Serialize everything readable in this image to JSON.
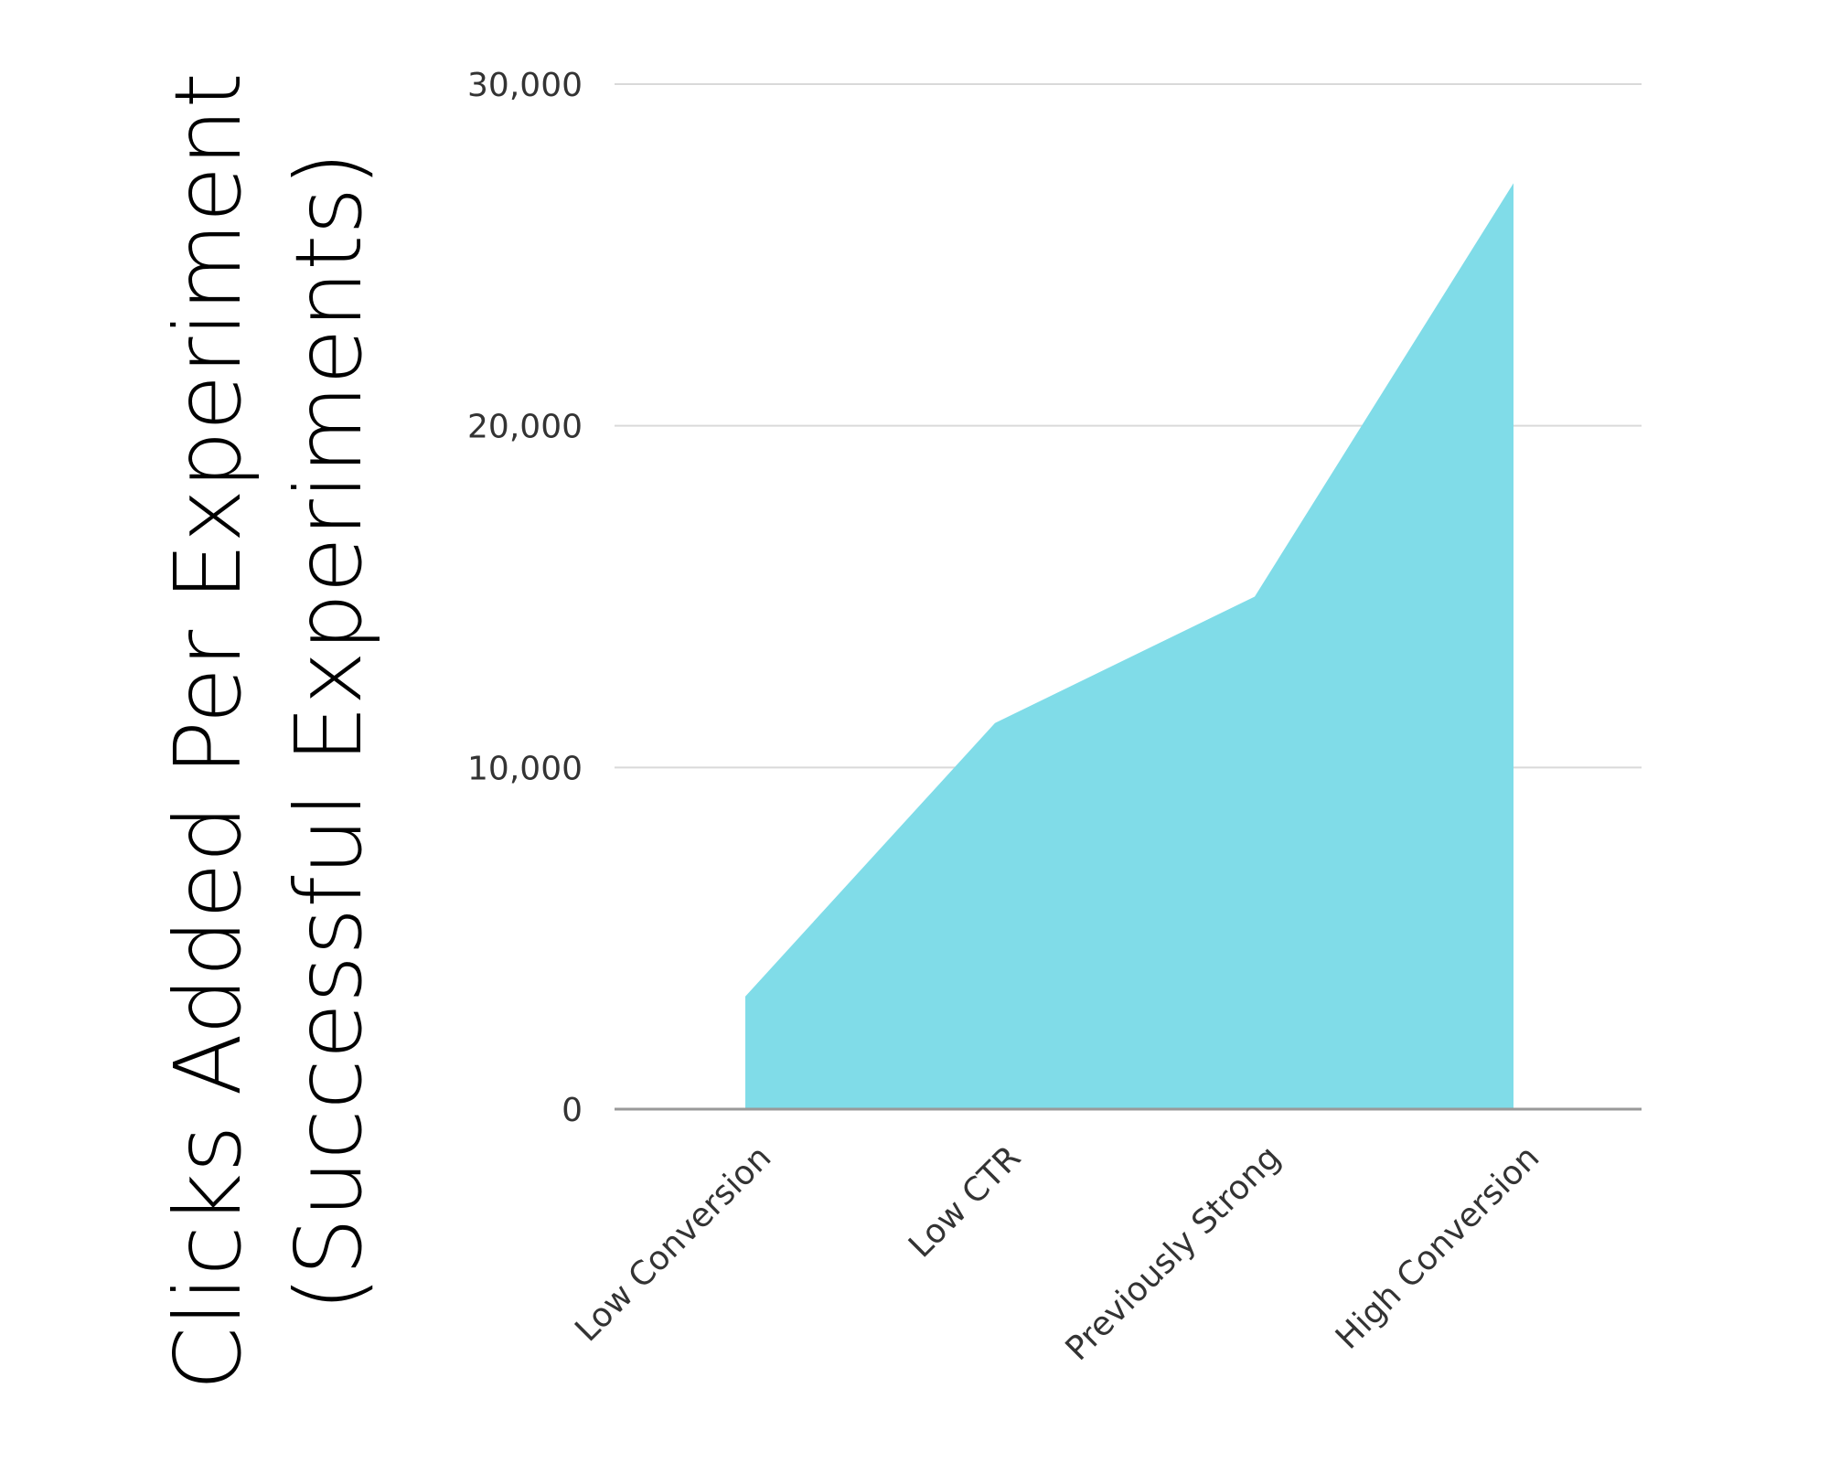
{
  "chart_data": {
    "type": "area",
    "categories": [
      "Low Conversion",
      "Low CTR",
      "Previously Strong",
      "High Conversion"
    ],
    "series": [
      {
        "values": [
          3300,
          11300,
          15000,
          27100
        ]
      }
    ],
    "title": "",
    "xlabel": "",
    "ylabel": [
      "Clicks Added Per Experiment",
      "(Successful Experiments)"
    ],
    "ylim": [
      0,
      30000
    ],
    "yticks": [
      0,
      10000,
      20000,
      30000
    ],
    "ytick_labels": [
      "0",
      "10,000",
      "20,000",
      "30,000"
    ],
    "grid": true,
    "legend": "none",
    "colors": {
      "fill": "#80DCE8",
      "grid": "#D9D9D9",
      "baseline": "#999999"
    }
  }
}
